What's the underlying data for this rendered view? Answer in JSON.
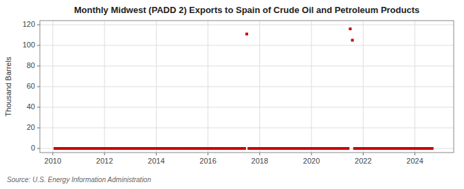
{
  "chart_data": {
    "type": "scatter",
    "title": "Monthly Midwest (PADD 2) Exports to Spain of Crude Oil and Petroleum Products",
    "ylabel": "Thousand Barrels",
    "source": "Source: U.S. Energy Information Administration",
    "color": "#cc0000",
    "marker": "square",
    "grid": true,
    "xlim": [
      2009.5,
      2025.5
    ],
    "ylim": [
      -4,
      124
    ],
    "xticks": [
      2010,
      2012,
      2014,
      2016,
      2018,
      2020,
      2022,
      2024
    ],
    "yticks": [
      0,
      20,
      40,
      60,
      80,
      100,
      120
    ],
    "x": [
      2010.0833,
      2010.1667,
      2010.25,
      2010.3333,
      2010.4167,
      2010.5,
      2010.5833,
      2010.6667,
      2010.75,
      2010.8333,
      2010.9167,
      2011.0,
      2011.0833,
      2011.1667,
      2011.25,
      2011.3333,
      2011.4167,
      2011.5,
      2011.5833,
      2011.6667,
      2011.75,
      2011.8333,
      2011.9167,
      2012.0,
      2012.0833,
      2012.1667,
      2012.25,
      2012.3333,
      2012.4167,
      2012.5,
      2012.5833,
      2012.6667,
      2012.75,
      2012.8333,
      2012.9167,
      2013.0,
      2013.0833,
      2013.1667,
      2013.25,
      2013.3333,
      2013.4167,
      2013.5,
      2013.5833,
      2013.6667,
      2013.75,
      2013.8333,
      2013.9167,
      2014.0,
      2014.0833,
      2014.1667,
      2014.25,
      2014.3333,
      2014.4167,
      2014.5,
      2014.5833,
      2014.6667,
      2014.75,
      2014.8333,
      2014.9167,
      2015.0,
      2015.0833,
      2015.1667,
      2015.25,
      2015.3333,
      2015.4167,
      2015.5,
      2015.5833,
      2015.6667,
      2015.75,
      2015.8333,
      2015.9167,
      2016.0,
      2016.0833,
      2016.1667,
      2016.25,
      2016.3333,
      2016.4167,
      2016.5,
      2016.5833,
      2016.6667,
      2016.75,
      2016.8333,
      2016.9167,
      2017.0,
      2017.0833,
      2017.1667,
      2017.25,
      2017.3333,
      2017.4167,
      2017.5,
      2017.5833,
      2017.6667,
      2017.75,
      2017.8333,
      2017.9167,
      2018.0,
      2018.0833,
      2018.1667,
      2018.25,
      2018.3333,
      2018.4167,
      2018.5,
      2018.5833,
      2018.6667,
      2018.75,
      2018.8333,
      2018.9167,
      2019.0,
      2019.0833,
      2019.1667,
      2019.25,
      2019.3333,
      2019.4167,
      2019.5,
      2019.5833,
      2019.6667,
      2019.75,
      2019.8333,
      2019.9167,
      2020.0,
      2020.0833,
      2020.1667,
      2020.25,
      2020.3333,
      2020.4167,
      2020.5,
      2020.5833,
      2020.6667,
      2020.75,
      2020.8333,
      2020.9167,
      2021.0,
      2021.0833,
      2021.1667,
      2021.25,
      2021.3333,
      2021.4167,
      2021.5,
      2021.5833,
      2021.6667,
      2021.75,
      2021.8333,
      2021.9167,
      2022.0,
      2022.0833,
      2022.1667,
      2022.25,
      2022.3333,
      2022.4167,
      2022.5,
      2022.5833,
      2022.6667,
      2022.75,
      2022.8333,
      2022.9167,
      2023.0,
      2023.0833,
      2023.1667,
      2023.25,
      2023.3333,
      2023.4167,
      2023.5,
      2023.5833,
      2023.6667,
      2023.75,
      2023.8333,
      2023.9167,
      2024.0,
      2024.0833,
      2024.1667,
      2024.25,
      2024.3333,
      2024.4167,
      2024.5,
      2024.5833,
      2024.6667
    ],
    "values": [
      0,
      0,
      0,
      0,
      0,
      0,
      0,
      0,
      0,
      0,
      0,
      0,
      0,
      0,
      0,
      0,
      0,
      0,
      0,
      0,
      0,
      0,
      0,
      0,
      0,
      0,
      0,
      0,
      0,
      0,
      0,
      0,
      0,
      0,
      0,
      0,
      0,
      0,
      0,
      0,
      0,
      0,
      0,
      0,
      0,
      0,
      0,
      0,
      0,
      0,
      0,
      0,
      0,
      0,
      0,
      0,
      0,
      0,
      0,
      0,
      0,
      0,
      0,
      0,
      0,
      0,
      0,
      0,
      0,
      0,
      0,
      0,
      0,
      0,
      0,
      0,
      0,
      0,
      0,
      0,
      0,
      0,
      0,
      0,
      0,
      0,
      0,
      0,
      0,
      111,
      0,
      0,
      0,
      0,
      0,
      0,
      0,
      0,
      0,
      0,
      0,
      0,
      0,
      0,
      0,
      0,
      0,
      0,
      0,
      0,
      0,
      0,
      0,
      0,
      0,
      0,
      0,
      0,
      0,
      0,
      0,
      0,
      0,
      0,
      0,
      0,
      0,
      0,
      0,
      0,
      0,
      0,
      0,
      0,
      0,
      0,
      0,
      116,
      105,
      0,
      0,
      0,
      0,
      0,
      0,
      0,
      0,
      0,
      0,
      0,
      0,
      0,
      0,
      0,
      0,
      0,
      0,
      0,
      0,
      0,
      0,
      0,
      0,
      0,
      0,
      0,
      0,
      0,
      0,
      0,
      0,
      0,
      0,
      0,
      0,
      0
    ]
  }
}
